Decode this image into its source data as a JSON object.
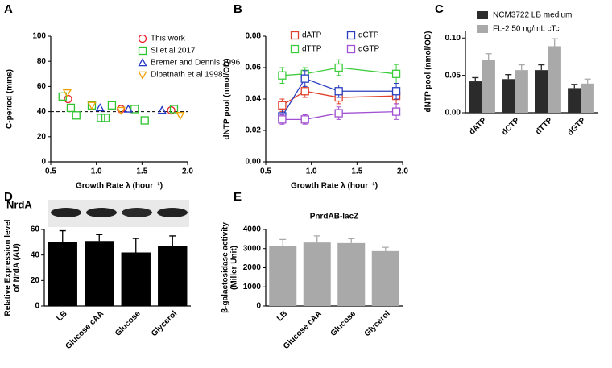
{
  "chart_data": [
    {
      "type": "scatter",
      "label": "A",
      "xlabel": "Growth Rate λ (hour⁻¹)",
      "ylabel": "C-period (mins)",
      "xlim": [
        0.5,
        2.0
      ],
      "xticks": [
        0.5,
        {
          "value": 1.0,
          "label": "1.0"
        },
        1.5,
        {
          "value": 2.0,
          "label": "2.0"
        }
      ],
      "ylim": [
        0,
        100
      ],
      "yticks": [
        0,
        20,
        40,
        60,
        80,
        100
      ],
      "reference_line": 40,
      "legend": "upper right",
      "series": [
        {
          "name": "This work",
          "color": "#e8212a",
          "marker": "circle",
          "x": [
            0.69,
            1.27,
            1.82
          ],
          "values": [
            50,
            42,
            41
          ]
        },
        {
          "name": "Si et al 2017",
          "color": "#2ec42e",
          "marker": "square",
          "x": [
            0.63,
            0.72,
            0.78,
            0.95,
            1.05,
            1.1,
            1.17,
            1.42,
            1.53,
            1.85
          ],
          "values": [
            52,
            43,
            37,
            45,
            35,
            35,
            45,
            42,
            33,
            42
          ]
        },
        {
          "name": "Bremer and Dennis 1996",
          "color": "#2436c8",
          "marker": "triangle",
          "x": [
            1.04,
            1.35,
            1.72
          ],
          "values": [
            43,
            42,
            41
          ]
        },
        {
          "name": "Dipatnath et al 1998",
          "color": "#f0a000",
          "marker": "triangle-down",
          "x": [
            0.68,
            0.95,
            1.27,
            1.92
          ],
          "values": [
            55,
            45,
            41,
            37
          ]
        }
      ]
    },
    {
      "type": "line",
      "label": "B",
      "xlabel": "Growth Rate λ (hour⁻¹)",
      "ylabel": "dNTP pool (nmol/OD)",
      "xlim": [
        0.5,
        2.0
      ],
      "xticks": [
        0.5,
        {
          "value": 1.0,
          "label": "1.0"
        },
        1.5,
        {
          "value": 2.0,
          "label": "2.0"
        }
      ],
      "ylim": [
        0,
        0.08
      ],
      "yticks": [
        {
          "value": 0,
          "label": "0.00"
        },
        0.02,
        0.04,
        0.06,
        0.08
      ],
      "legend": "upper center",
      "x": [
        0.68,
        0.93,
        1.3,
        1.93
      ],
      "series": [
        {
          "name": "dATP",
          "color": "#e0402a",
          "values": [
            0.036,
            0.045,
            0.041,
            0.042
          ],
          "errors": [
            0.004,
            0.004,
            0.004,
            0.005
          ]
        },
        {
          "name": "dTTP",
          "color": "#3ccc3c",
          "values": [
            0.055,
            0.056,
            0.06,
            0.056
          ],
          "errors": [
            0.005,
            0.004,
            0.005,
            0.006
          ]
        },
        {
          "name": "dCTP",
          "color": "#2a3fc0",
          "values": [
            0.029,
            0.053,
            0.045,
            0.045
          ],
          "errors": [
            0.004,
            0.005,
            0.004,
            0.005
          ]
        },
        {
          "name": "dGTP",
          "color": "#a050d0",
          "values": [
            0.027,
            0.027,
            0.031,
            0.032
          ],
          "errors": [
            0.003,
            0.003,
            0.004,
            0.005
          ]
        }
      ]
    },
    {
      "type": "bar",
      "label": "C",
      "ylabel": "dNTP pool (nmol/OD)",
      "categories": [
        "dATP",
        "dCTP",
        "dTTP",
        "dGTP"
      ],
      "ylim": [
        0,
        0.11
      ],
      "yticks": [
        {
          "value": 0,
          "label": "0.00"
        },
        0.05,
        {
          "value": 0.1,
          "label": "0.10"
        }
      ],
      "legend": "top",
      "series": [
        {
          "name": "NCM3722 LB medium",
          "color": "#2b2b2b",
          "values": [
            0.042,
            0.045,
            0.057,
            0.033
          ],
          "errors": [
            0.005,
            0.006,
            0.007,
            0.005
          ]
        },
        {
          "name": "FL-2 50 ng/mL cTc",
          "color": "#a9a9a9",
          "values": [
            0.071,
            0.057,
            0.089,
            0.039
          ],
          "errors": [
            0.008,
            0.007,
            0.01,
            0.006
          ]
        }
      ]
    },
    {
      "type": "bar",
      "label": "D",
      "blot_label": "NrdA",
      "ylabel": [
        "Relative Expression level",
        "of NrdA (AU)"
      ],
      "categories": [
        "LB",
        "Glucose cAA",
        "Glucose",
        "Glycerol"
      ],
      "ylim": [
        0,
        60
      ],
      "yticks": [
        0,
        20,
        40,
        60
      ],
      "color": "#000000",
      "values": [
        50,
        51,
        42,
        47
      ],
      "errors": [
        9,
        5,
        11,
        8
      ]
    },
    {
      "type": "bar",
      "label": "E",
      "title": "PnrdAB-lacZ",
      "ylabel": [
        "β-galactosidase activity",
        "(Miller Unit)"
      ],
      "categories": [
        "LB",
        "Glucose cAA",
        "Glucose",
        "Glycerol"
      ],
      "ylim": [
        0,
        4000
      ],
      "yticks": [
        0,
        1000,
        2000,
        3000,
        4000
      ],
      "color": "#a9a9a9",
      "values": [
        3150,
        3320,
        3290,
        2870
      ],
      "errors": [
        330,
        350,
        230,
        200
      ]
    }
  ]
}
